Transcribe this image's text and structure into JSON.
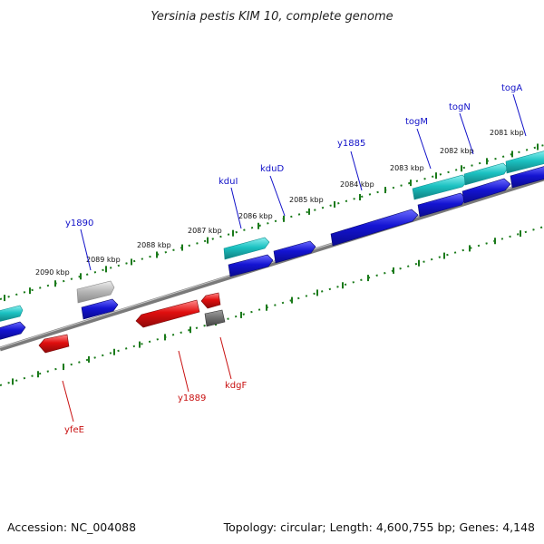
{
  "title": "Yersinia pestis KIM 10, complete genome",
  "footer": {
    "accession": "Accession: NC_004088",
    "summary": "Topology: circular; Length: 4,600,755 bp; Genes: 4,148"
  },
  "kbp_labels": [
    "2090 kbp",
    "2089 kbp",
    "2088 kbp",
    "2087 kbp",
    "2086 kbp",
    "2085 kbp",
    "2084 kbp",
    "2083 kbp",
    "2082 kbp",
    "2081 kbp"
  ],
  "gene_labels_forward": [
    "y1890",
    "kduI",
    "kduD",
    "y1885",
    "togM",
    "togN",
    "togA"
  ],
  "gene_labels_reverse": [
    "yfeE",
    "y1889",
    "kdgF"
  ],
  "colors": {
    "forward_cds": "#1414d2",
    "reverse_cds": "#e00f0f",
    "rna_feature": "#1cc2c2",
    "pseudo_forward": "#b4b4b4",
    "pseudo_reverse": "#6e6e6e",
    "backbone": "#7a7a7a",
    "tick": "#1a7a1a"
  }
}
